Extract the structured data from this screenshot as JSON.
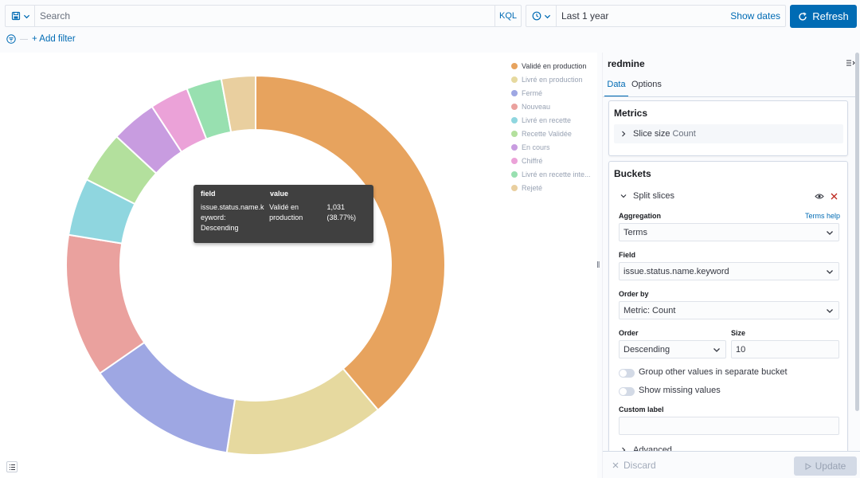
{
  "query_bar": {
    "search_placeholder": "Search",
    "kql_label": "KQL",
    "time_range": "Last 1 year",
    "show_dates_label": "Show dates",
    "refresh_label": "Refresh"
  },
  "filter_bar": {
    "add_filter_label": "+ Add filter"
  },
  "chart_data": {
    "type": "pie",
    "donut": true,
    "categories": [
      "Validé en production",
      "Livré en production",
      "Fermé",
      "Nouveau",
      "Livré en recette",
      "Recette Validée",
      "En cours",
      "Chiffré",
      "Livré en recette inte...",
      "Rejeté"
    ],
    "values": [
      38.77,
      13.6,
      12.9,
      12.2,
      4.9,
      4.4,
      3.9,
      3.3,
      3.0,
      2.9
    ],
    "colors": [
      "#e7a35e",
      "#e6d99f",
      "#9ea7e3",
      "#eaa19e",
      "#8fd6df",
      "#b3e09d",
      "#c89ce0",
      "#eba2d8",
      "#98e0b0",
      "#e9cf9f"
    ]
  },
  "legend": {
    "items": [
      {
        "label": "Validé en production",
        "color": "#e7a35e"
      },
      {
        "label": "Livré en production",
        "color": "#e6d99f"
      },
      {
        "label": "Fermé",
        "color": "#9ea7e3"
      },
      {
        "label": "Nouveau",
        "color": "#eaa19e"
      },
      {
        "label": "Livré en recette",
        "color": "#8fd6df"
      },
      {
        "label": "Recette Validée",
        "color": "#b3e09d"
      },
      {
        "label": "En cours",
        "color": "#c89ce0"
      },
      {
        "label": "Chiffré",
        "color": "#eba2d8"
      },
      {
        "label": "Livré en recette inte...",
        "color": "#98e0b0"
      },
      {
        "label": "Rejeté",
        "color": "#e9cf9f"
      }
    ]
  },
  "tooltip": {
    "header_field": "field",
    "header_value": "value",
    "field_line1": "issue.status.name.k",
    "field_line2": "eyword:",
    "field_line3": "Descending",
    "value_line1": "Validé en",
    "value_line2": "production",
    "count": "1,031",
    "percent": "(38.77%)"
  },
  "panel": {
    "title": "redmine",
    "tabs": [
      "Data",
      "Options"
    ],
    "metrics": {
      "title": "Metrics",
      "slice_size_label": "Slice size",
      "slice_size_value": "Count"
    },
    "buckets": {
      "title": "Buckets",
      "split_label": "Split slices",
      "aggregation_label": "Aggregation",
      "terms_help_label": "Terms help",
      "aggregation_value": "Terms",
      "field_label": "Field",
      "field_value": "issue.status.name.keyword",
      "order_by_label": "Order by",
      "order_by_value": "Metric: Count",
      "order_label": "Order",
      "order_value": "Descending",
      "size_label": "Size",
      "size_value": "10",
      "group_other_label": "Group other values in separate bucket",
      "show_missing_label": "Show missing values",
      "custom_label_label": "Custom label",
      "advanced_label": "Advanced"
    },
    "footer": {
      "discard_label": "Discard",
      "update_label": "Update"
    }
  }
}
